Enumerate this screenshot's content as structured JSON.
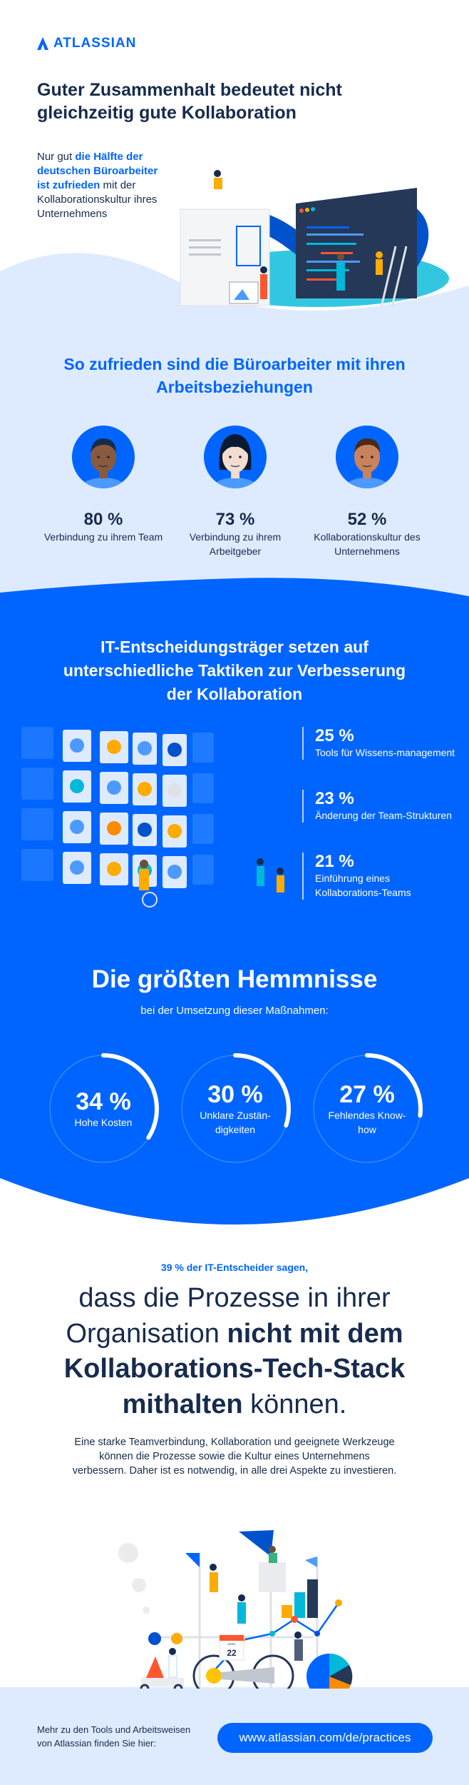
{
  "brand": {
    "name": "ATLASSIAN",
    "color": "#0065ff"
  },
  "hero": {
    "title": "Guter Zusammenhalt bedeutet nicht gleichzeitig gute Kollaboration",
    "intro_prefix": "Nur gut ",
    "intro_highlight": "die Hälfte der deutschen Büroarbeiter ist zufrieden",
    "intro_suffix": " mit der Kollaborationskultur ihres Unternehmens"
  },
  "satisfaction": {
    "heading": "So zufrieden sind die Büroarbeiter mit ihren Arbeitsbeziehungen",
    "items": [
      {
        "value": "80 %",
        "label": "Verbindung zu ihrem Team"
      },
      {
        "value": "73 %",
        "label": "Verbindung zu ihrem Arbeitgeber"
      },
      {
        "value": "52 %",
        "label": "Kollaborationskultur des Unternehmens"
      }
    ]
  },
  "tactics": {
    "heading": "IT-Entscheidungsträger setzen auf unterschiedliche Taktiken zur Verbesserung der Kollaboration",
    "items": [
      {
        "value": "25 %",
        "label": "Tools für Wissens-management"
      },
      {
        "value": "23 %",
        "label": "Änderung der Team-Strukturen"
      },
      {
        "value": "21 %",
        "label": "Einführung eines Kollaborations-Teams"
      }
    ]
  },
  "obstacles": {
    "heading": "Die größten Hemmnisse",
    "subheading": "bei der Umsetzung dieser Maßnahmen:",
    "items": [
      {
        "value": "34 %",
        "percent": 34,
        "label": "Hohe Kosten"
      },
      {
        "value": "30 %",
        "percent": 30,
        "label": "Unklare Zustän-digkeiten"
      },
      {
        "value": "27 %",
        "percent": 27,
        "label": "Fehlendes Know-how"
      }
    ]
  },
  "quote": {
    "kicker": "39 % der IT-Entscheider sagen,",
    "part1": "dass die Prozesse in ihrer Organisation ",
    "bold": "nicht mit dem Kollaborations-Tech-Stack mithalten",
    "part2": " können.",
    "paragraph": "Eine starke Teamverbindung, Kollaboration und geeignete Werkzeuge können die Prozesse sowie die Kultur eines Unternehmens verbessern. Daher ist es notwendig, in alle drei Aspekte zu investieren."
  },
  "illustration": {
    "calendar_month": "APRIL",
    "calendar_day": "22"
  },
  "footer": {
    "text": "Mehr zu den Tools und Arbeitsweisen von Atlassian finden Sie hier:",
    "link": "www.atlassian.com/de/practices"
  },
  "colors": {
    "navy": "#172b4d",
    "blue": "#0065ff",
    "light": "#deebff"
  }
}
